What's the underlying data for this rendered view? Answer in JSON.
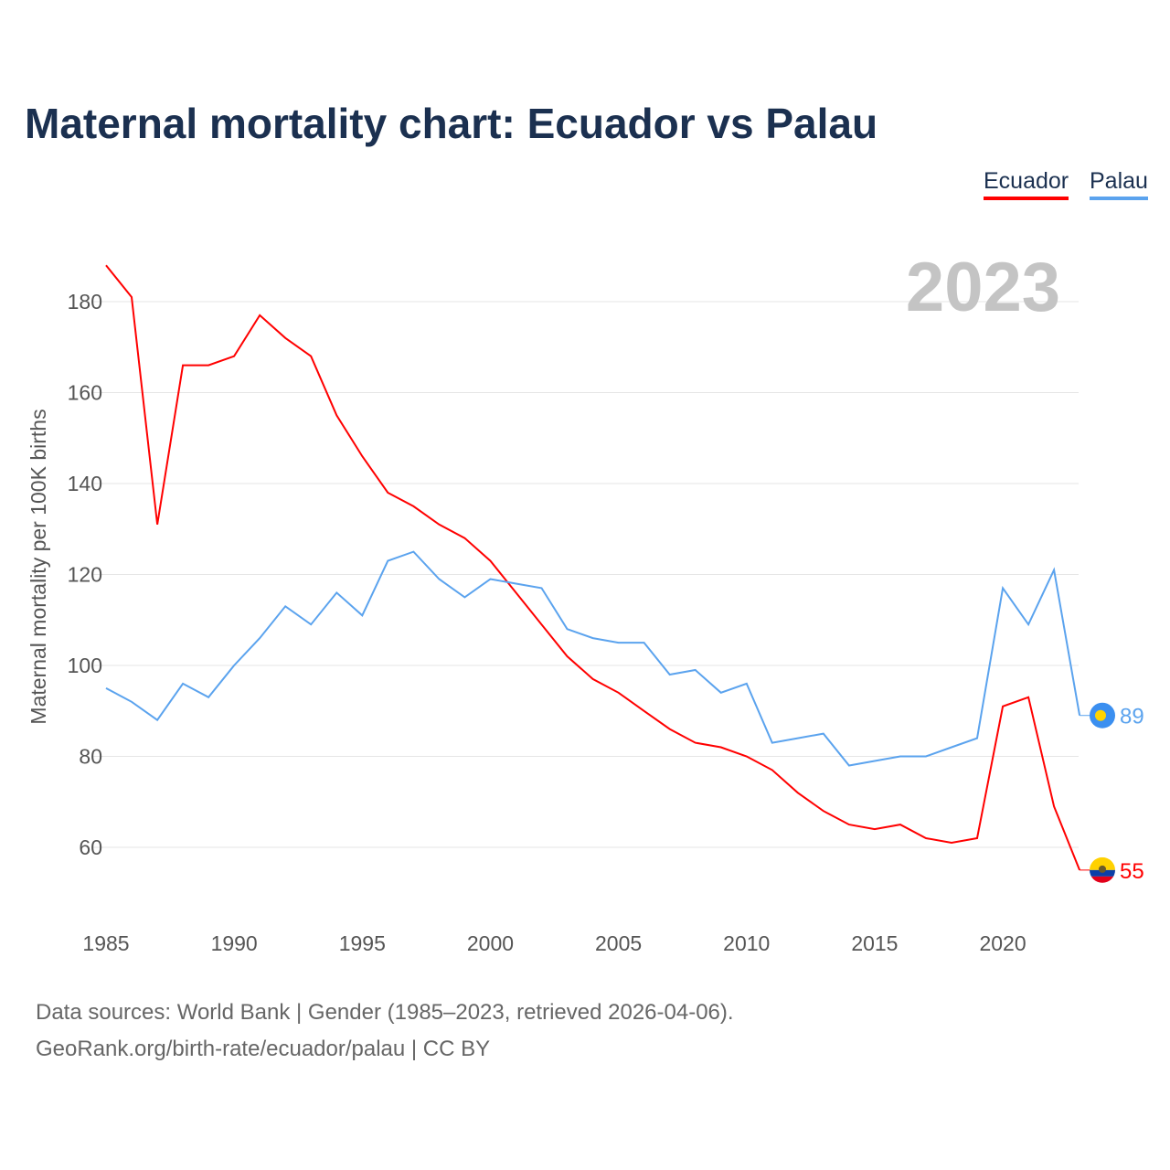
{
  "title": "Maternal mortality chart: Ecuador vs Palau",
  "year_label": "2023",
  "footer": {
    "line1": "Data sources: World Bank | Gender (1985–2023, retrieved 2026-04-06).",
    "line2": "GeoRank.org/birth-rate/ecuador/palau | CC BY"
  },
  "chart_data": {
    "type": "line",
    "title": "Maternal mortality chart: Ecuador vs Palau",
    "xlabel": "",
    "ylabel": "Maternal mortality per 100K births",
    "xlim": [
      1985,
      2023
    ],
    "ylim": [
      48,
      192
    ],
    "x_ticks": [
      1985,
      1990,
      1995,
      2000,
      2005,
      2010,
      2015,
      2020
    ],
    "y_ticks": [
      60,
      80,
      100,
      120,
      140,
      160,
      180
    ],
    "grid": true,
    "legend_position": "top-right",
    "x": [
      1985,
      1986,
      1987,
      1988,
      1989,
      1990,
      1991,
      1992,
      1993,
      1994,
      1995,
      1996,
      1997,
      1998,
      1999,
      2000,
      2001,
      2002,
      2003,
      2004,
      2005,
      2006,
      2007,
      2008,
      2009,
      2010,
      2011,
      2012,
      2013,
      2014,
      2015,
      2016,
      2017,
      2018,
      2019,
      2020,
      2021,
      2022,
      2023
    ],
    "series": [
      {
        "name": "Ecuador",
        "color": "#ff0000",
        "end_label": "55",
        "values": [
          188,
          181,
          131,
          166,
          166,
          168,
          177,
          172,
          168,
          155,
          146,
          138,
          135,
          131,
          128,
          123,
          116,
          109,
          102,
          97,
          94,
          90,
          86,
          83,
          82,
          80,
          77,
          72,
          68,
          65,
          64,
          65,
          62,
          61,
          62,
          91,
          93,
          69,
          55
        ]
      },
      {
        "name": "Palau",
        "color": "#5ba3ee",
        "end_label": "89",
        "values": [
          95,
          92,
          88,
          96,
          93,
          100,
          106,
          113,
          109,
          116,
          111,
          123,
          125,
          119,
          115,
          119,
          118,
          117,
          108,
          106,
          105,
          105,
          98,
          99,
          94,
          96,
          83,
          84,
          85,
          78,
          79,
          80,
          80,
          82,
          84,
          117,
          109,
          121,
          89
        ]
      }
    ]
  }
}
